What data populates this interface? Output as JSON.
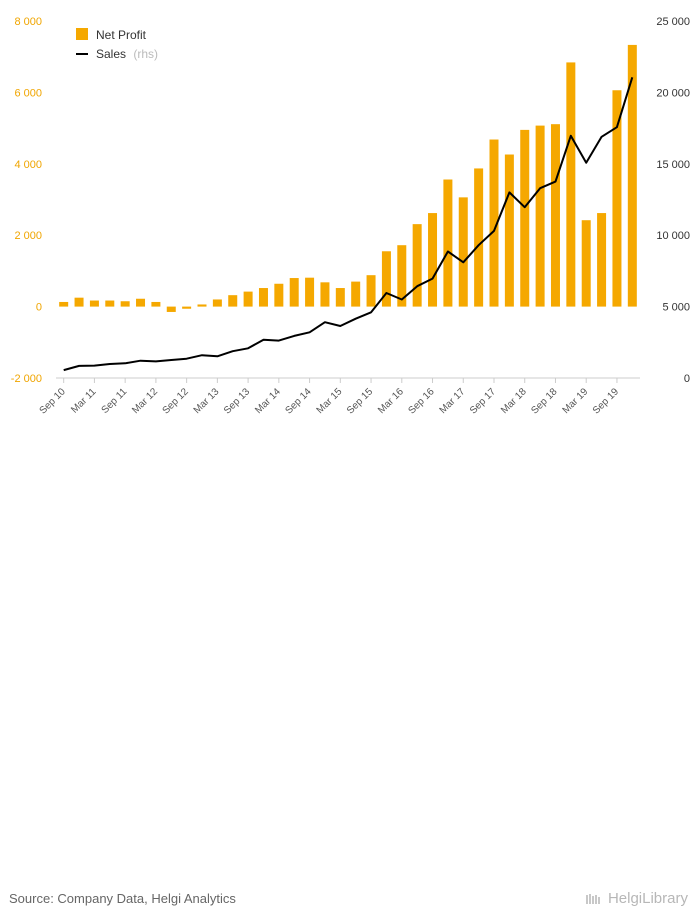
{
  "chart_data": {
    "type": "bar",
    "categories": [
      "Sep 10",
      "Dec 10",
      "Mar 11",
      "Jun 11",
      "Sep 11",
      "Dec 11",
      "Mar 12",
      "Jun 12",
      "Sep 12",
      "Dec 12",
      "Mar 13",
      "Jun 13",
      "Sep 13",
      "Dec 13",
      "Mar 14",
      "Jun 14",
      "Sep 14",
      "Dec 14",
      "Mar 15",
      "Jun 15",
      "Sep 15",
      "Dec 15",
      "Mar 16",
      "Jun 16",
      "Sep 16",
      "Dec 16",
      "Mar 17",
      "Jun 17",
      "Sep 17",
      "Dec 17",
      "Mar 18",
      "Jun 18",
      "Sep 18",
      "Dec 18",
      "Mar 19",
      "Jun 19",
      "Sep 19",
      "Dec 19"
    ],
    "x_tick_labels": [
      "Sep 10",
      "Mar 11",
      "Sep 11",
      "Mar 12",
      "Sep 12",
      "Mar 13",
      "Sep 13",
      "Mar 14",
      "Sep 14",
      "Mar 15",
      "Sep 15",
      "Mar 16",
      "Sep 16",
      "Mar 17",
      "Sep 17",
      "Mar 18",
      "Sep 18",
      "Mar 19",
      "Sep 19"
    ],
    "series": [
      {
        "name": "Net Profit",
        "kind": "bar",
        "axis": "left",
        "color": "#f5a800",
        "values": [
          130,
          250,
          170,
          170,
          150,
          220,
          130,
          -150,
          -60,
          60,
          200,
          320,
          420,
          520,
          640,
          800,
          810,
          680,
          520,
          700,
          880,
          1550,
          1720,
          2310,
          2620,
          3560,
          3060,
          3870,
          4680,
          4260,
          4950,
          5070,
          5110,
          6840,
          2420,
          2620,
          6060,
          7330
        ]
      },
      {
        "name": "Sales",
        "suffix": "(rhs)",
        "kind": "line",
        "axis": "right",
        "color": "#000000",
        "values": [
          550,
          850,
          870,
          980,
          1030,
          1210,
          1160,
          1260,
          1350,
          1600,
          1520,
          1880,
          2080,
          2680,
          2620,
          2950,
          3200,
          3910,
          3640,
          4150,
          4600,
          5950,
          5500,
          6430,
          6960,
          8860,
          8100,
          9300,
          10300,
          13000,
          11960,
          13290,
          13750,
          16960,
          15080,
          16890,
          17560,
          21060
        ]
      }
    ],
    "y_left": {
      "ticks": [
        "8 000",
        "6 000",
        "4 000",
        "2 000",
        "0",
        "-2 000"
      ],
      "ylim": [
        -2000,
        8000
      ]
    },
    "y_right": {
      "ticks": [
        "25 000",
        "20 000",
        "15 000",
        "10 000",
        "5 000",
        "0"
      ],
      "ylim": [
        0,
        25000
      ]
    },
    "legend_placement": "top-left",
    "grid": false
  },
  "footer": {
    "source": "Source: Company Data, Helgi Analytics",
    "brand": "HelgiLibrary"
  }
}
